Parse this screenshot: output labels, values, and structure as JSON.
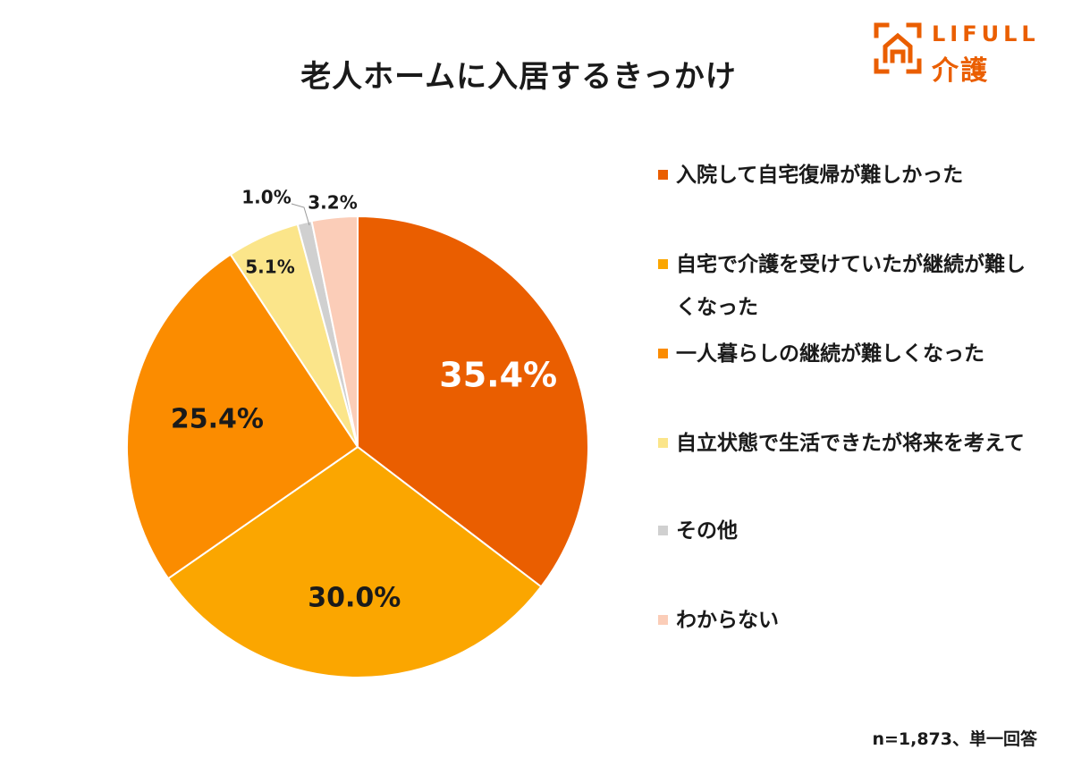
{
  "title": "老人ホームに入居するきっかけ",
  "logo": {
    "text_top": "LIFULL",
    "text_bottom": "介護",
    "name": "lifull-kaigo-logo"
  },
  "footnote": "n=1,873、単一回答",
  "chart_data": {
    "type": "pie",
    "title": "老人ホームに入居するきっかけ",
    "start_angle": "12 o'clock",
    "direction": "clockwise",
    "legend_position": "right",
    "slices": [
      {
        "label": "入院して自宅復帰が難しかった",
        "value": 35.4,
        "value_label": "35.4%",
        "color": "#ea5e00",
        "label_color": "#ffffff"
      },
      {
        "label": "自宅で介護を受けていたが継続が難しくなった",
        "value": 30.0,
        "value_label": "30.0%",
        "color": "#fba600",
        "label_color": "#1a1a1a"
      },
      {
        "label": "一人暮らしの継続が難しくなった",
        "value": 25.4,
        "value_label": "25.4%",
        "color": "#fb8c00",
        "label_color": "#1a1a1a"
      },
      {
        "label": "自立状態で生活できたが将来を考えて",
        "value": 5.1,
        "value_label": "5.1%",
        "color": "#fbe58a",
        "label_color": "#1a1a1a"
      },
      {
        "label": "その他",
        "value": 1.0,
        "value_label": "1.0%",
        "color": "#d0d0d0",
        "label_color": "#1a1a1a"
      },
      {
        "label": "わからない",
        "value": 3.2,
        "value_label": "3.2%",
        "color": "#fbcdb8",
        "label_color": "#1a1a1a"
      }
    ]
  }
}
